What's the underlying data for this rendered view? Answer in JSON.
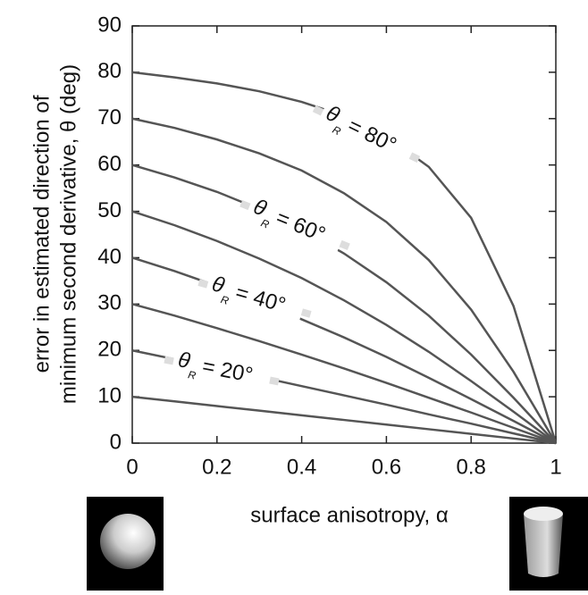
{
  "chart_data": {
    "type": "line",
    "x_label": "surface anisotropy, α",
    "y_label": [
      "error in estimated direction of",
      "minimum second derivative, θ (deg)"
    ],
    "x": [
      0,
      0.1,
      0.2,
      0.3,
      0.4,
      0.5,
      0.6,
      0.7,
      0.8,
      0.9,
      1
    ],
    "series": [
      {
        "color": "#555555",
        "values": [
          10,
          9,
          8,
          7,
          6,
          5,
          4,
          3,
          2,
          1,
          0
        ]
      },
      {
        "color": "#555555",
        "values": [
          20,
          18.1,
          16.2,
          14.3,
          12.3,
          10.3,
          8.3,
          6.2,
          4.2,
          2.1,
          0
        ]
      },
      {
        "color": "#555555",
        "values": [
          30,
          27.5,
          24.8,
          22.0,
          19.1,
          16.1,
          13.0,
          9.8,
          6.6,
          3.3,
          0
        ]
      },
      {
        "color": "#555555",
        "values": [
          40,
          37.1,
          33.9,
          30.4,
          26.7,
          22.8,
          18.6,
          14.1,
          9.5,
          4.8,
          0
        ]
      },
      {
        "color": "#555555",
        "values": [
          50,
          47.0,
          43.6,
          39.8,
          35.6,
          30.8,
          25.5,
          19.7,
          13.4,
          6.8,
          0
        ]
      },
      {
        "color": "#555555",
        "values": [
          60,
          57.3,
          54.2,
          50.5,
          46.1,
          40.9,
          34.7,
          27.5,
          19.1,
          9.8,
          0
        ]
      },
      {
        "color": "#555555",
        "values": [
          70,
          68.0,
          65.5,
          62.5,
          58.8,
          53.9,
          47.7,
          39.5,
          28.8,
          15.4,
          0
        ]
      },
      {
        "color": "#555555",
        "values": [
          80,
          78.9,
          77.6,
          75.9,
          73.6,
          70.6,
          66.2,
          59.6,
          48.6,
          29.6,
          0
        ]
      }
    ],
    "annotations": [
      {
        "symbol": "θ",
        "subscript": "R",
        "text": "= 80°"
      },
      {
        "symbol": "θ",
        "subscript": "R",
        "text": "= 60°"
      },
      {
        "symbol": "θ",
        "subscript": "R",
        "text": "= 40°"
      },
      {
        "symbol": "θ",
        "subscript": "R",
        "text": "= 20°"
      }
    ],
    "xlim": [
      0,
      1
    ],
    "xticks": [
      0,
      0.2,
      0.4,
      0.6,
      0.8,
      1
    ],
    "ylim": [
      0,
      90
    ],
    "yticks": [
      0,
      10,
      20,
      30,
      40,
      50,
      60,
      70,
      80,
      90
    ]
  }
}
